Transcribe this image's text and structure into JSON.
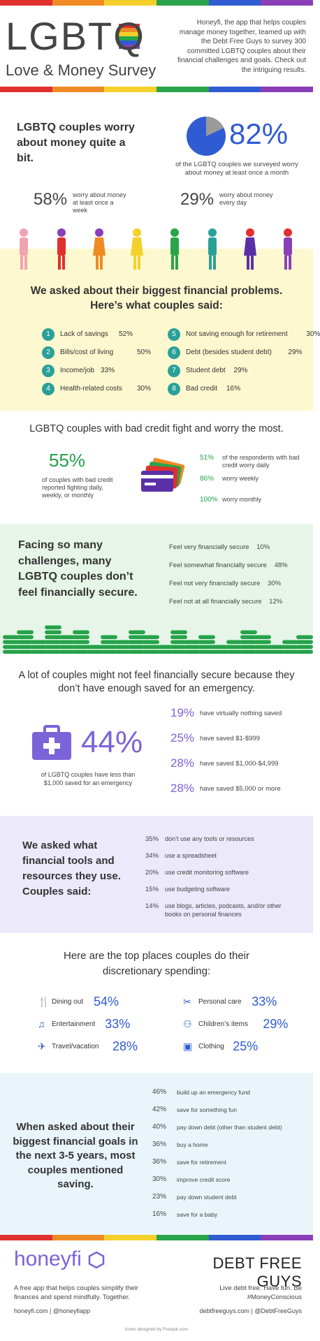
{
  "header": {
    "logo_text": "LGBT",
    "logo_q": "Q",
    "subtitle": "Love & Money Survey",
    "intro": "Honeyfi, the app that helps couples manage money together, teamed up with the Debt Free Guys to survey 300 committed LGBTQ couples about their financial challenges and goals. Check out the intriguing results."
  },
  "colors": {
    "rainbow": [
      "#e0312f",
      "#f08a24",
      "#f5d02c",
      "#2aa44a",
      "#2f5bd3",
      "#8a3fb8"
    ],
    "accent_purple": "#6c63d8",
    "accent_blue": "#2f5bd3",
    "teal": "#2aa198",
    "green": "#27a14a"
  },
  "worry": {
    "title": "LGBTQ couples worry about money quite a bit.",
    "pie_pct": "82%",
    "pie_value": 0.82,
    "pie_caption": "of the LGBTQ couples we surveyed worry about money at least once a month",
    "weekly_pct": "58%",
    "weekly_text": "worry about money at least once a week",
    "daily_pct": "29%",
    "daily_text": "worry about money every day"
  },
  "problems": {
    "title": "We asked about their biggest financial problems. Here’s what couples said:",
    "items": [
      {
        "n": "1",
        "label": "Lack of savings",
        "pct": "52%"
      },
      {
        "n": "2",
        "label": "Bills/cost of living",
        "pct": "50%"
      },
      {
        "n": "3",
        "label": "Income/job",
        "pct": "33%"
      },
      {
        "n": "4",
        "label": "Health-related costs",
        "pct": "30%"
      },
      {
        "n": "5",
        "label": "Not saving enough for retirement",
        "pct": "30%"
      },
      {
        "n": "6",
        "label": "Debt (besides student debt)",
        "pct": "29%"
      },
      {
        "n": "7",
        "label": "Student debt",
        "pct": "29%"
      },
      {
        "n": "8",
        "label": "Bad credit",
        "pct": "16%"
      }
    ]
  },
  "credit": {
    "title": "LGBTQ couples with bad credit fight and worry the most.",
    "main_pct": "55%",
    "main_text": "of couples with bad credit reported fighting daily, weekly, or monthly",
    "rows": [
      {
        "pct": "51%",
        "text": "of the respondents with bad credit worry daily"
      },
      {
        "pct": "86%",
        "text": "worry weekly"
      },
      {
        "pct": "100%",
        "text": "worry monthly"
      }
    ]
  },
  "secure": {
    "title": "Facing so many challenges, many LGBTQ couples don’t feel financially secure.",
    "rows": [
      {
        "text": "Feel very financially secure",
        "pct": "10%"
      },
      {
        "text": "Feel somewhat financially secure",
        "pct": "48%"
      },
      {
        "text": "Feel not very financially secure",
        "pct": "30%"
      },
      {
        "text": "Feel not at all financially secure",
        "pct": "12%"
      }
    ]
  },
  "emergency": {
    "title": "A lot of couples might not feel financially secure because they don’t have enough saved for an emergency.",
    "main_pct": "44%",
    "main_text": "of LGBTQ couples have less than $1,000 saved for an emergency",
    "rows": [
      {
        "pct": "19%",
        "text": "have virtually nothing saved"
      },
      {
        "pct": "25%",
        "text": "have saved $1-$999"
      },
      {
        "pct": "28%",
        "text": "have saved $1,000-$4,999"
      },
      {
        "pct": "28%",
        "text": "have saved $5,000 or more"
      }
    ]
  },
  "tools": {
    "title": "We asked what financial tools and resources they use. Couples said:",
    "rows": [
      {
        "pct": "35%",
        "text": "don’t use any tools or resources"
      },
      {
        "pct": "34%",
        "text": "use a spreadsheet"
      },
      {
        "pct": "20%",
        "text": "use credit monitoring software"
      },
      {
        "pct": "15%",
        "text": "use budgeting software"
      },
      {
        "pct": "14%",
        "text": "use blogs, articles, podcasts, and/or other books on personal finances"
      }
    ]
  },
  "spending": {
    "title": "Here are the top places couples do their discretionary spending:",
    "left": [
      {
        "icon": "fork-knife-icon",
        "label": "Dining out",
        "pct": "54%"
      },
      {
        "icon": "music-note-icon",
        "label": "Entertainment",
        "pct": "33%"
      },
      {
        "icon": "airplane-icon",
        "label": "Travel/vacation",
        "pct": "28%"
      }
    ],
    "right": [
      {
        "icon": "hair-dryer-icon",
        "label": "Personal care",
        "pct": "33%"
      },
      {
        "icon": "stroller-icon",
        "label": "Children’s items",
        "pct": "29%"
      },
      {
        "icon": "shopping-bag-icon",
        "label": "Clothing",
        "pct": "25%"
      }
    ]
  },
  "goals": {
    "title": "When asked about their biggest financial goals in the next 3-5 years, most couples mentioned saving.",
    "rows": [
      {
        "pct": "46%",
        "text": "build up an emergency fund"
      },
      {
        "pct": "42%",
        "text": "save for something fun"
      },
      {
        "pct": "40%",
        "text": "pay down debt (other than student debt)"
      },
      {
        "pct": "36%",
        "text": "buy a home"
      },
      {
        "pct": "36%",
        "text": "save for retirement"
      },
      {
        "pct": "30%",
        "text": "improve credit score"
      },
      {
        "pct": "23%",
        "text": "pay down student debt"
      },
      {
        "pct": "16%",
        "text": "save for a baby"
      }
    ]
  },
  "footer": {
    "honeyfi_logo": "honeyfi",
    "honeyfi_text": "A free app that helps couples simplify their finances and spend mindfully. Together.",
    "honeyfi_links": "honeyfi.com | @honeyfiapp",
    "dfg_logo": "DEBT FREE GUYS",
    "dfg_text": "Live debt free. Have fun. Be #MoneyConscious",
    "dfg_links": "debtfreeguys.com | @DebtFreeGuys",
    "credit": "Icons designed by Freepik.com"
  }
}
